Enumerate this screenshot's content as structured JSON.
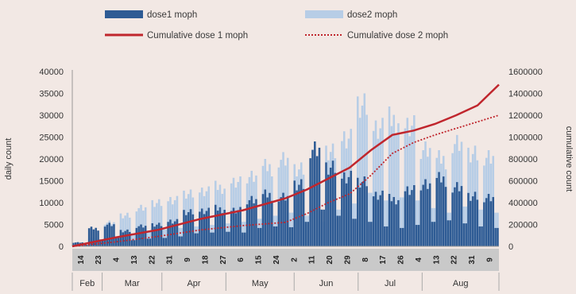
{
  "colors": {
    "background": "#f2e8e4",
    "dose1": "#2e5b94",
    "dose2": "#b7cde6",
    "cum1": "#c0262d",
    "cum2": "#c0262d",
    "date_band": "#c9c9c9"
  },
  "chart_data": {
    "type": "bar",
    "legend": {
      "dose1": "dose1 moph",
      "dose2": "dose2 moph",
      "cum1": "Cumulative dose 1 moph",
      "cum2": "Cumulative dose 2 moph"
    },
    "ylabel": "daily count",
    "y2label": "cumulative count",
    "ylim": [
      0,
      40000
    ],
    "y2lim": [
      0,
      1600000
    ],
    "yticks": [
      "40000",
      "35000",
      "30000",
      "25000",
      "20000",
      "15000",
      "10000",
      "5000",
      "0"
    ],
    "y2ticks": [
      "1600000",
      "1400000",
      "1200000",
      "1000000",
      "800000",
      "600000",
      "400000",
      "200000",
      "0"
    ],
    "xticks": [
      "14",
      "21",
      "28",
      "7",
      "14",
      "21",
      "28",
      "4",
      "11",
      "18",
      "25",
      "2",
      "9",
      "16",
      "23",
      "30",
      "6",
      "13",
      "20",
      "27",
      "4",
      "11",
      "18",
      "25",
      "1",
      "8",
      "15",
      "22",
      "29",
      "5",
      "12",
      "19"
    ],
    "xtick_labels": [
      "14",
      "23",
      "4",
      "13",
      "22",
      "31",
      "9",
      "18",
      "27",
      "6",
      "15",
      "24",
      "2",
      "11",
      "20",
      "29",
      "8",
      "17",
      "26",
      "4",
      "13",
      "22",
      "31",
      "9"
    ],
    "months": [
      "Feb",
      "Mar",
      "Apr",
      "May",
      "Jun",
      "Jul",
      "Aug"
    ],
    "weekly_dose1": [
      1000,
      4500,
      5500,
      4000,
      5000,
      5500,
      6500,
      8500,
      9000,
      9500,
      9000,
      12000,
      13000,
      12500,
      16000,
      24000,
      20000,
      18000,
      16000,
      13000,
      12000,
      14000,
      16000,
      17000,
      15000,
      13000,
      12000
    ],
    "weekly_dose2": [
      500,
      2000,
      6000,
      8000,
      9500,
      11000,
      12000,
      13000,
      14000,
      15000,
      16000,
      18000,
      20000,
      22000,
      20000,
      16000,
      24000,
      28000,
      35000,
      30000,
      32000,
      30000,
      25000,
      22000,
      26000,
      24000,
      22000
    ],
    "cum_dose1_x": [
      0,
      0.1,
      0.2,
      0.3,
      0.4,
      0.5,
      0.55,
      0.6,
      0.65,
      0.7,
      0.75,
      0.8,
      0.85,
      0.9,
      0.95,
      1.0
    ],
    "cum_dose1": [
      0,
      80000,
      150000,
      250000,
      330000,
      440000,
      520000,
      620000,
      720000,
      880000,
      1020000,
      1060000,
      1120000,
      1200000,
      1290000,
      1480000
    ],
    "cum_dose2_x": [
      0,
      0.1,
      0.2,
      0.3,
      0.4,
      0.5,
      0.55,
      0.6,
      0.65,
      0.7,
      0.75,
      0.8,
      0.85,
      0.9,
      0.95,
      1.0
    ],
    "cum_dose2": [
      0,
      40000,
      90000,
      150000,
      190000,
      220000,
      300000,
      400000,
      480000,
      650000,
      850000,
      950000,
      1020000,
      1080000,
      1140000,
      1200000
    ],
    "grid": false,
    "legend_position": "top"
  }
}
